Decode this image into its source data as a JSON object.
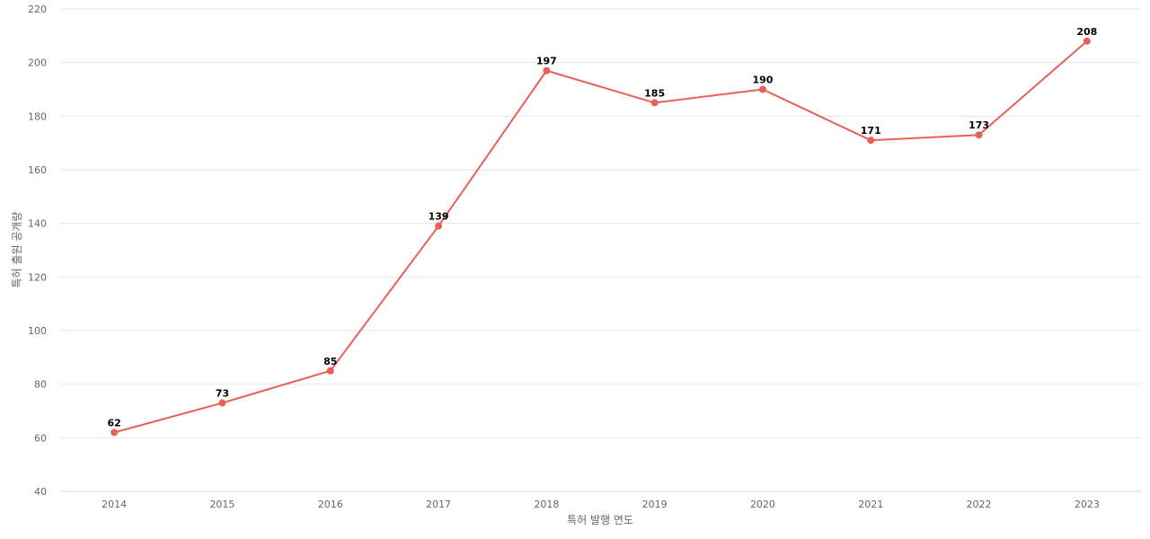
{
  "chart_data": {
    "type": "line",
    "title": "",
    "xlabel": "특허 발행 연도",
    "ylabel": "특허 출원 공개량",
    "categories": [
      "2014",
      "2015",
      "2016",
      "2017",
      "2018",
      "2019",
      "2020",
      "2021",
      "2022",
      "2023"
    ],
    "series": [
      {
        "values": [
          62,
          73,
          85,
          139,
          197,
          185,
          190,
          171,
          173,
          208
        ],
        "color": "#e8605a"
      }
    ],
    "ylim": [
      40,
      220
    ],
    "yticks": [
      40,
      60,
      80,
      100,
      120,
      140,
      160,
      180,
      200,
      220
    ],
    "grid": true,
    "legend": "none",
    "data_labels": true
  }
}
